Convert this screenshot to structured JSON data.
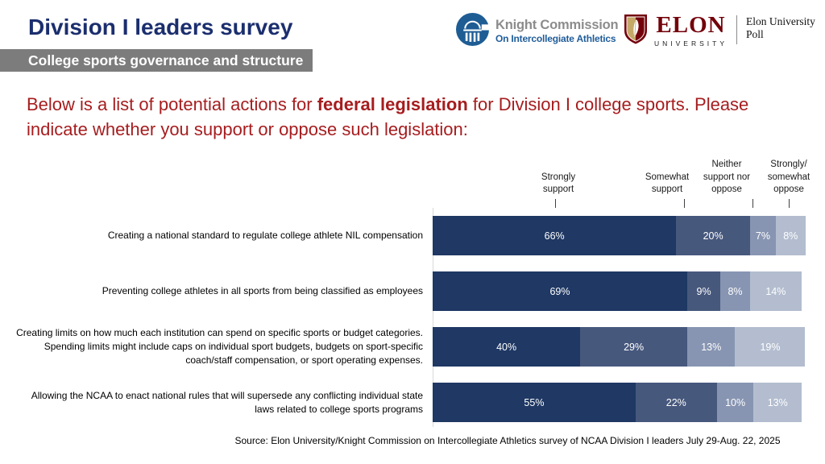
{
  "header": {
    "title": "Division I leaders survey",
    "subtitle": "College sports governance and structure"
  },
  "logos": {
    "knight": {
      "name_line1": "Knight Commission",
      "name_line2": "On Intercollegiate Athletics"
    },
    "elon": {
      "wordmark": "ELON",
      "university": "UNIVERSITY",
      "poll": "Elon University\nPoll"
    }
  },
  "question": {
    "pre": "Below is a list of potential actions for ",
    "bold": "federal legislation",
    "post": " for Division I college sports. Please indicate whether you support or oppose such legislation:"
  },
  "chart_data": {
    "type": "bar",
    "orientation": "horizontal",
    "stacked": true,
    "unit": "%",
    "xlim": [
      0,
      100
    ],
    "title": "Below is a list of potential actions for federal legislation for Division I college sports. Please indicate whether you support or oppose such legislation:",
    "legend_position": "top",
    "grid": false,
    "series_labels": [
      "Strongly\nsupport",
      "Somewhat\nsupport",
      "Neither\nsupport nor\noppose",
      "Strongly/\nsomewhat\noppose"
    ],
    "colors": [
      "#1F3864",
      "#47587D",
      "#8795B2",
      "#B3BDCF"
    ],
    "categories": [
      "Creating a national standard to regulate college athlete NIL compensation",
      "Preventing college athletes in all sports from being classified as employees",
      "Creating limits on how much each institution can spend on specific sports or budget categories. Spending limits might include caps on individual sport budgets, budgets on sport-specific coach/staff compensation, or sport operating expenses.",
      "Allowing the NCAA to enact national rules that will supersede any conflicting individual state laws related to college sports programs"
    ],
    "series": [
      {
        "name": "Strongly support",
        "values": [
          66,
          69,
          40,
          55
        ]
      },
      {
        "name": "Somewhat support",
        "values": [
          20,
          9,
          29,
          22
        ]
      },
      {
        "name": "Neither support nor oppose",
        "values": [
          7,
          8,
          13,
          10
        ]
      },
      {
        "name": "Strongly/somewhat oppose",
        "values": [
          8,
          14,
          19,
          13
        ]
      }
    ]
  },
  "source": "Source: Elon University/Knight Commission on Intercollegiate Athletics survey of NCAA Division I leaders July 29-Aug. 22, 2025"
}
